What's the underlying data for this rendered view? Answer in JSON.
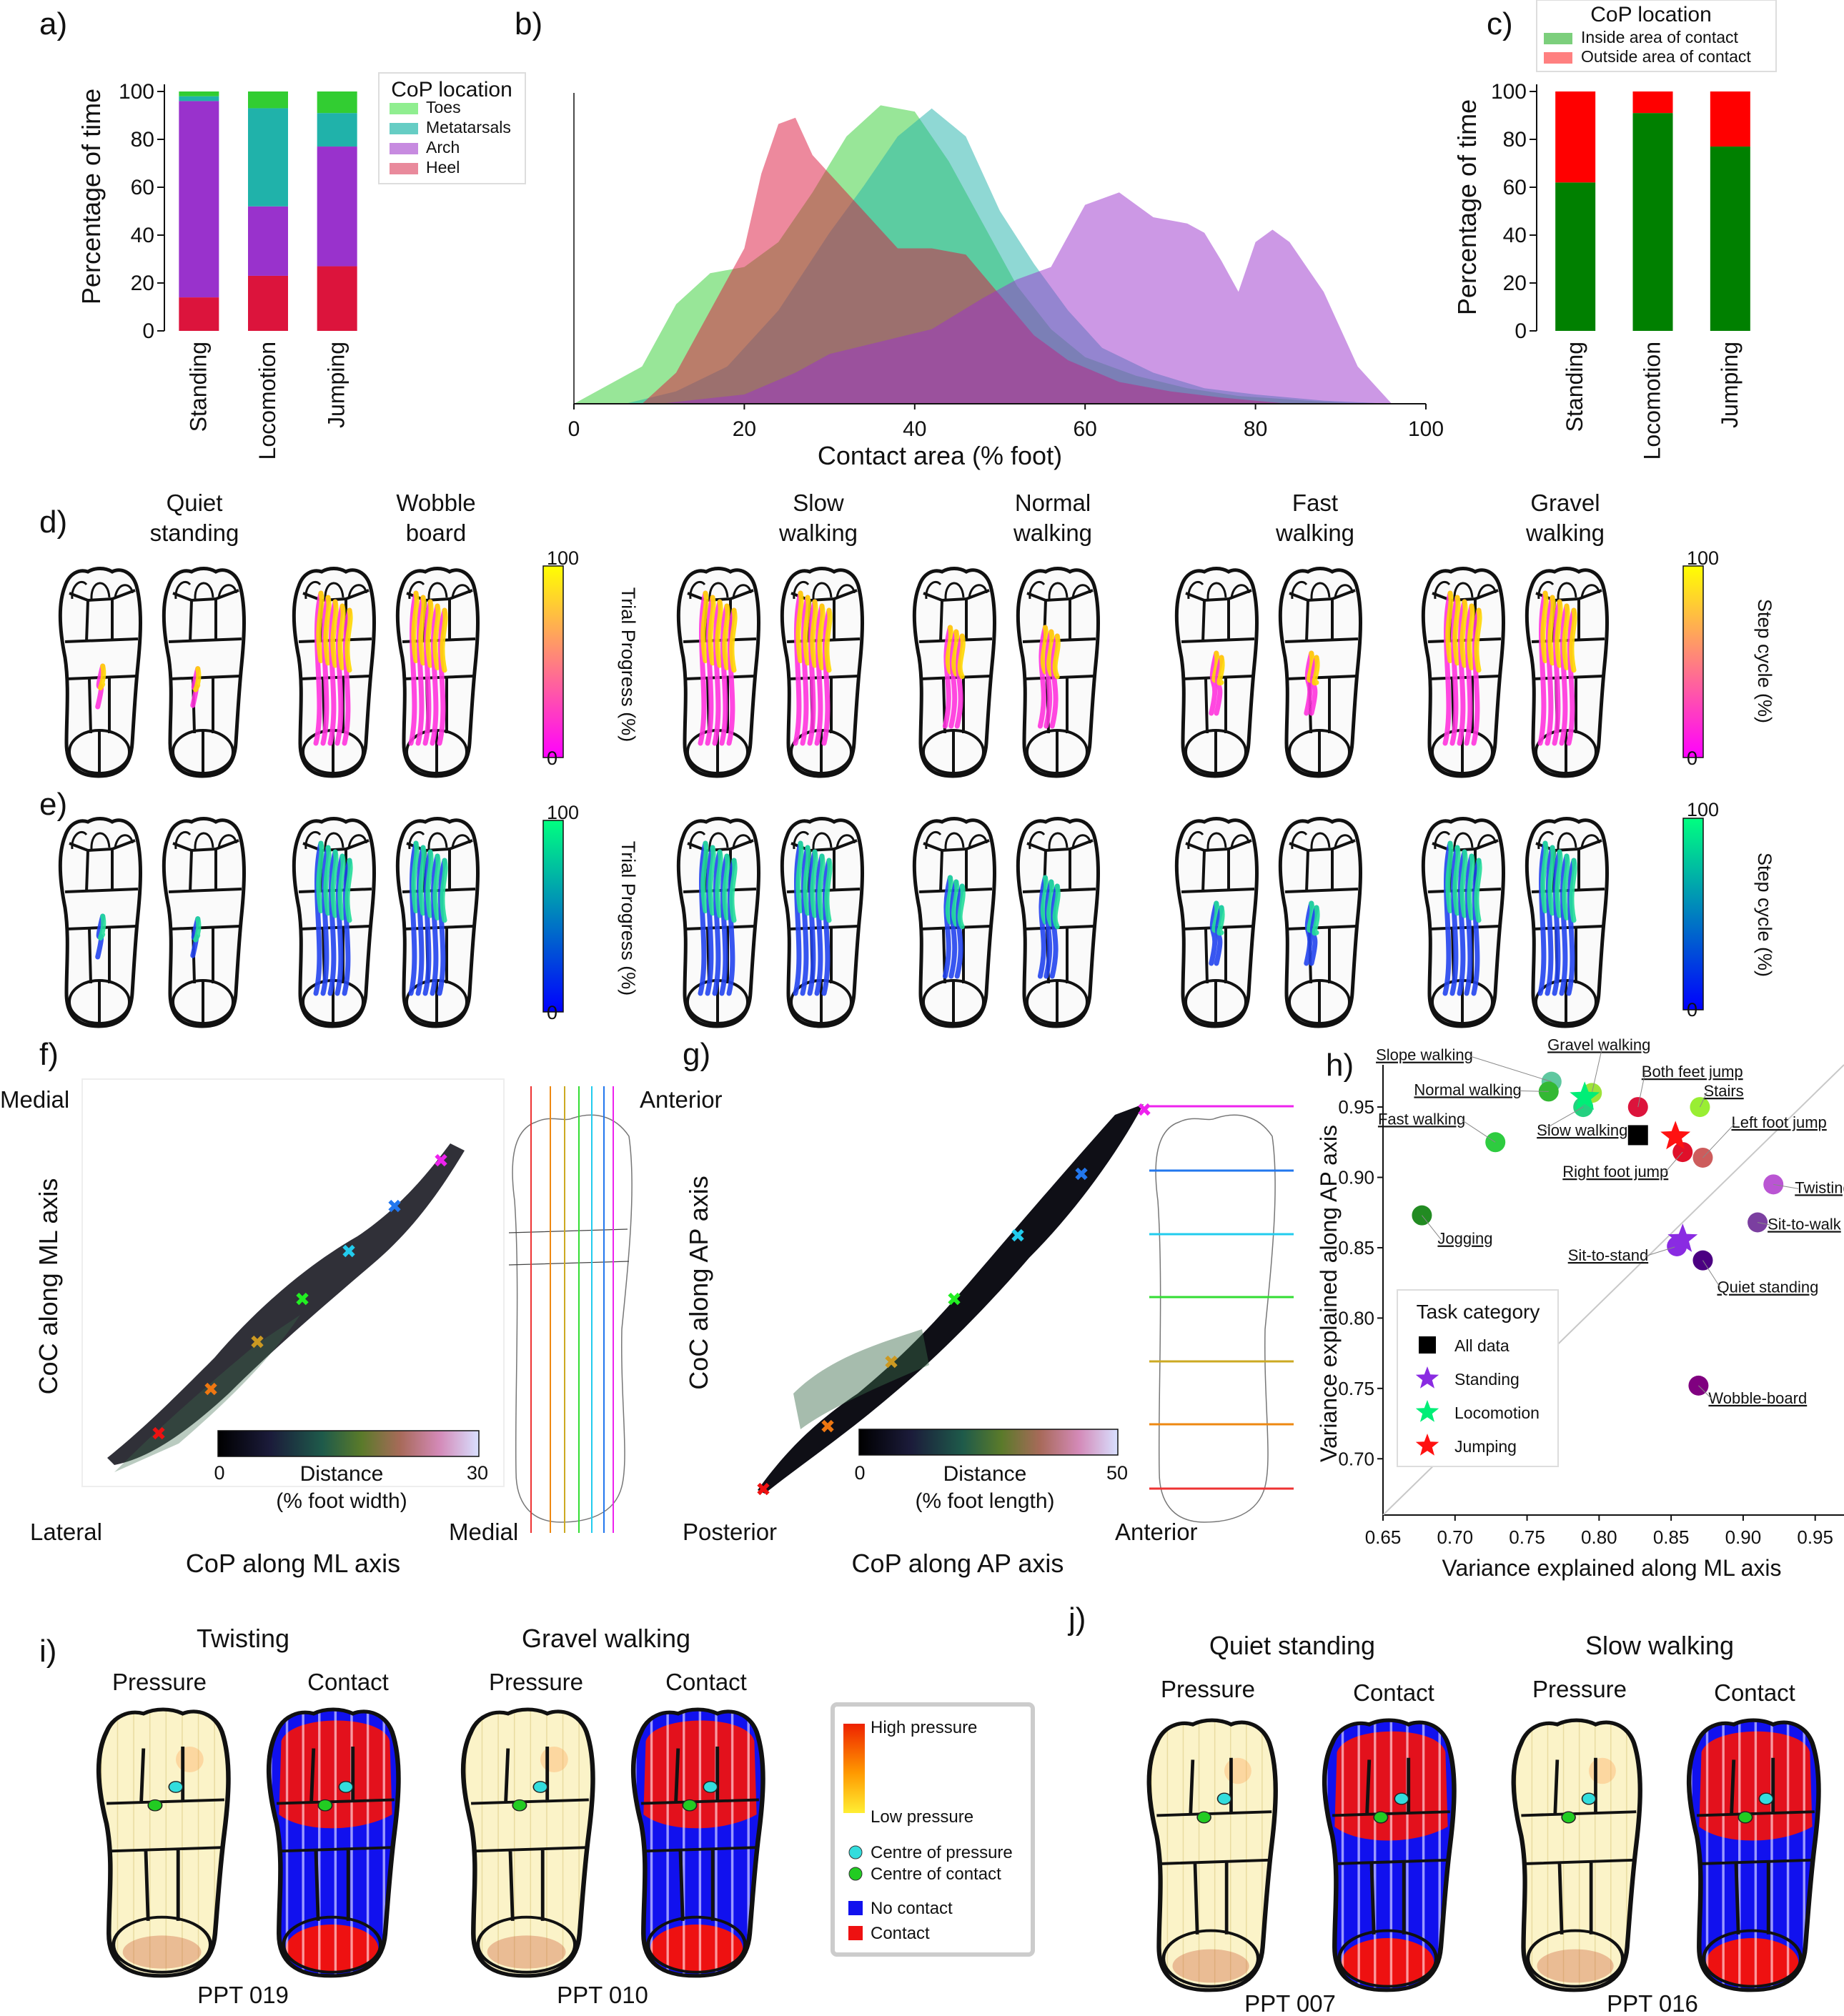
{
  "panel_labels": [
    "a)",
    "b)",
    "c)",
    "d)",
    "e)",
    "f)",
    "g)",
    "h)",
    "i)",
    "j)"
  ],
  "colors": {
    "toes": "#32cd32",
    "metatarsals": "#20b2aa",
    "arch": "#9932cc",
    "heel": "#dc143c",
    "inside": "#008000",
    "outside": "#ff0000",
    "contact": "#ee1111",
    "no_contact": "#1111ee",
    "cop_dot": "#33dddd",
    "coc_dot": "#22cc22"
  },
  "chart_data": [
    {
      "id": "a",
      "type": "bar",
      "stacked": true,
      "categories": [
        "Standing",
        "Locomotion",
        "Jumping"
      ],
      "ylabel": "Percentage of time",
      "ylim": [
        0,
        100
      ],
      "yticks": [
        0,
        20,
        40,
        60,
        80,
        100
      ],
      "legend": {
        "title": "CoP location",
        "placement": "right",
        "entries": [
          "Toes",
          "Metatarsals",
          "Arch",
          "Heel"
        ]
      },
      "series": [
        {
          "name": "Heel",
          "color": "#dc143c",
          "values": [
            14,
            23,
            27
          ]
        },
        {
          "name": "Arch",
          "color": "#9932cc",
          "values": [
            82,
            29,
            50
          ]
        },
        {
          "name": "Metatarsals",
          "color": "#20b2aa",
          "values": [
            2,
            41,
            14
          ]
        },
        {
          "name": "Toes",
          "color": "#32cd32",
          "values": [
            2,
            7,
            9
          ]
        }
      ]
    },
    {
      "id": "b",
      "type": "area",
      "xlabel": "Contact area (% foot)",
      "xlim": [
        0,
        100
      ],
      "xticks": [
        0,
        20,
        40,
        60,
        80,
        100
      ],
      "series": [
        {
          "name": "Toes",
          "color": "#32cd32",
          "x": [
            0,
            8,
            12,
            16,
            20,
            24,
            28,
            32,
            36,
            40,
            44,
            48,
            52,
            56,
            60,
            66,
            72,
            78,
            86,
            92
          ],
          "y": [
            0,
            0.12,
            0.32,
            0.42,
            0.44,
            0.52,
            0.68,
            0.86,
            0.96,
            0.94,
            0.78,
            0.58,
            0.38,
            0.24,
            0.15,
            0.09,
            0.05,
            0.025,
            0.01,
            0
          ]
        },
        {
          "name": "Metatarsals",
          "color": "#20b2aa",
          "x": [
            6,
            12,
            18,
            24,
            30,
            34,
            38,
            42,
            46,
            50,
            54,
            58,
            62,
            68,
            74,
            80,
            88,
            96
          ],
          "y": [
            0,
            0.04,
            0.12,
            0.3,
            0.55,
            0.7,
            0.86,
            0.95,
            0.86,
            0.62,
            0.45,
            0.3,
            0.18,
            0.1,
            0.05,
            0.03,
            0.01,
            0
          ]
        },
        {
          "name": "Heel",
          "color": "#dc143c",
          "x": [
            8,
            12,
            16,
            20,
            22,
            24,
            26,
            28,
            30,
            34,
            38,
            42,
            46,
            50,
            54,
            58,
            64,
            70,
            76,
            84
          ],
          "y": [
            0,
            0.1,
            0.3,
            0.5,
            0.74,
            0.9,
            0.92,
            0.8,
            0.74,
            0.62,
            0.5,
            0.5,
            0.48,
            0.35,
            0.22,
            0.14,
            0.07,
            0.04,
            0.02,
            0
          ]
        },
        {
          "name": "Arch",
          "color": "#9932cc",
          "x": [
            10,
            20,
            26,
            30,
            36,
            42,
            48,
            52,
            56,
            60,
            64,
            68,
            72,
            74,
            76,
            78,
            80,
            82,
            84,
            88,
            92,
            96
          ],
          "y": [
            0,
            0.03,
            0.1,
            0.16,
            0.2,
            0.24,
            0.34,
            0.4,
            0.44,
            0.64,
            0.68,
            0.6,
            0.58,
            0.55,
            0.46,
            0.36,
            0.52,
            0.56,
            0.52,
            0.36,
            0.12,
            0
          ]
        }
      ]
    },
    {
      "id": "c",
      "type": "bar",
      "stacked": true,
      "categories": [
        "Standing",
        "Locomotion",
        "Jumping"
      ],
      "ylabel": "Percentage of time",
      "ylim": [
        0,
        100
      ],
      "yticks": [
        0,
        20,
        40,
        60,
        80,
        100
      ],
      "legend": {
        "title": "CoP location",
        "placement": "top",
        "entries": [
          "Inside area of contact",
          "Outside area of contact"
        ]
      },
      "series": [
        {
          "name": "Inside area of contact",
          "color": "#008000",
          "values": [
            62,
            91,
            77
          ]
        },
        {
          "name": "Outside area of contact",
          "color": "#ff0000",
          "values": [
            38,
            9,
            23
          ]
        }
      ]
    },
    {
      "id": "f",
      "type": "scatter",
      "xlabel": "CoP along ML axis",
      "ylabel": "CoC along ML axis",
      "x_ends": [
        "Lateral",
        "Medial"
      ],
      "y_ends": [
        "Medial"
      ],
      "colorbar": {
        "label": "Distance",
        "sublabel": "(% foot width)",
        "min": "0",
        "max": "30"
      }
    },
    {
      "id": "g",
      "type": "scatter",
      "xlabel": "CoP along AP axis",
      "ylabel": "CoC along AP axis",
      "x_ends": [
        "Posterior",
        "Anterior"
      ],
      "y_ends": [
        "Anterior"
      ],
      "colorbar": {
        "label": "Distance",
        "sublabel": "(% foot length)",
        "min": "0",
        "max": "50"
      }
    },
    {
      "id": "h",
      "type": "scatter",
      "xlabel": "Variance explained along ML axis",
      "ylabel": "Variance explained along AP axis",
      "xlim": [
        0.65,
        0.97
      ],
      "ylim": [
        0.66,
        0.98
      ],
      "xticks": [
        "0.65",
        "0.70",
        "0.75",
        "0.80",
        "0.85",
        "0.90",
        "0.95"
      ],
      "yticks": [
        "0.70",
        "0.75",
        "0.80",
        "0.85",
        "0.90",
        "0.95"
      ],
      "legend": {
        "title": "Task category",
        "placement": "lower-center",
        "entries": [
          {
            "label": "All data",
            "marker": "square",
            "color": "#000000"
          },
          {
            "label": "Standing",
            "marker": "star",
            "color": "#8a2be2"
          },
          {
            "label": "Locomotion",
            "marker": "star",
            "color": "#00ee77"
          },
          {
            "label": "Jumping",
            "marker": "star",
            "color": "#ff1111"
          }
        ]
      },
      "points": [
        {
          "label": "Slope walking",
          "x": 0.767,
          "y": 0.968,
          "color": "#5fc8a0"
        },
        {
          "label": "Gravel walking",
          "x": 0.795,
          "y": 0.96,
          "color": "#9ee33a"
        },
        {
          "label": "Normal walking",
          "x": 0.765,
          "y": 0.961,
          "color": "#33b833"
        },
        {
          "label": "Fast walking",
          "x": 0.728,
          "y": 0.925,
          "color": "#2ecc40"
        },
        {
          "label": "Slow walking",
          "x": 0.789,
          "y": 0.95,
          "color": "#25d080"
        },
        {
          "label": "Both feet  jump",
          "x": 0.827,
          "y": 0.95,
          "color": "#dc143c"
        },
        {
          "label": "Stairs",
          "x": 0.87,
          "y": 0.95,
          "color": "#99ee33"
        },
        {
          "label": "Left foot jump",
          "x": 0.872,
          "y": 0.914,
          "color": "#cd5c5c"
        },
        {
          "label": "Right foot jump",
          "x": 0.858,
          "y": 0.918,
          "color": "#e0102a"
        },
        {
          "label": "Twisting",
          "x": 0.921,
          "y": 0.895,
          "color": "#ba55d3"
        },
        {
          "label": "Sit-to-walk",
          "x": 0.91,
          "y": 0.868,
          "color": "#7b3fa0"
        },
        {
          "label": "Jogging",
          "x": 0.677,
          "y": 0.873,
          "color": "#228b22"
        },
        {
          "label": "Sit-to-stand",
          "x": 0.854,
          "y": 0.851,
          "color": "#8a2be2"
        },
        {
          "label": "Quiet standing",
          "x": 0.872,
          "y": 0.841,
          "color": "#4b0082"
        },
        {
          "label": "Wobble-board",
          "x": 0.869,
          "y": 0.752,
          "color": "#800080"
        }
      ],
      "stars": [
        {
          "category": "Locomotion",
          "x": 0.79,
          "y": 0.957,
          "color": "#00ee77"
        },
        {
          "category": "Jumping",
          "x": 0.853,
          "y": 0.929,
          "color": "#ff1111"
        },
        {
          "category": "Standing",
          "x": 0.858,
          "y": 0.856,
          "color": "#8a2be2"
        }
      ],
      "all_data": {
        "x": 0.827,
        "y": 0.93
      }
    }
  ],
  "panel_d": {
    "titles": [
      "Quiet\nstanding",
      "Wobble\nboard",
      "Slow\nwalking",
      "Normal\nwalking",
      "Fast\nwalking",
      "Gravel\nwalking"
    ],
    "colorbar_left": {
      "label": "Trial Progress\n(%)",
      "max": "100",
      "min": "0"
    },
    "colorbar_right": {
      "label": "Step cycle (%)",
      "max": "100",
      "min": "0"
    }
  },
  "panel_e": {
    "colorbar_left": {
      "label": "Trial Progress\n(%)",
      "max": "100",
      "min": "0"
    },
    "colorbar_right": {
      "label": "Step cycle (%)",
      "max": "100",
      "min": "0"
    }
  },
  "panel_i": {
    "groups": [
      {
        "title": "Twisting",
        "pressure": "Pressure",
        "contact": "Contact",
        "participant": "PPT 019"
      },
      {
        "title": "Gravel walking",
        "pressure": "Pressure",
        "contact": "Contact",
        "participant": "PPT 010"
      }
    ],
    "legend": {
      "high": "High pressure",
      "low": "Low pressure",
      "cop": "Centre of pressure",
      "coc": "Centre of contact",
      "no_contact": "No contact",
      "contact": "Contact"
    }
  },
  "panel_j": {
    "groups": [
      {
        "title": "Quiet standing",
        "pressure": "Pressure",
        "contact": "Contact",
        "participant": "PPT 007"
      },
      {
        "title": "Slow walking",
        "pressure": "Pressure",
        "contact": "Contact",
        "participant": "PPT 016"
      }
    ]
  }
}
